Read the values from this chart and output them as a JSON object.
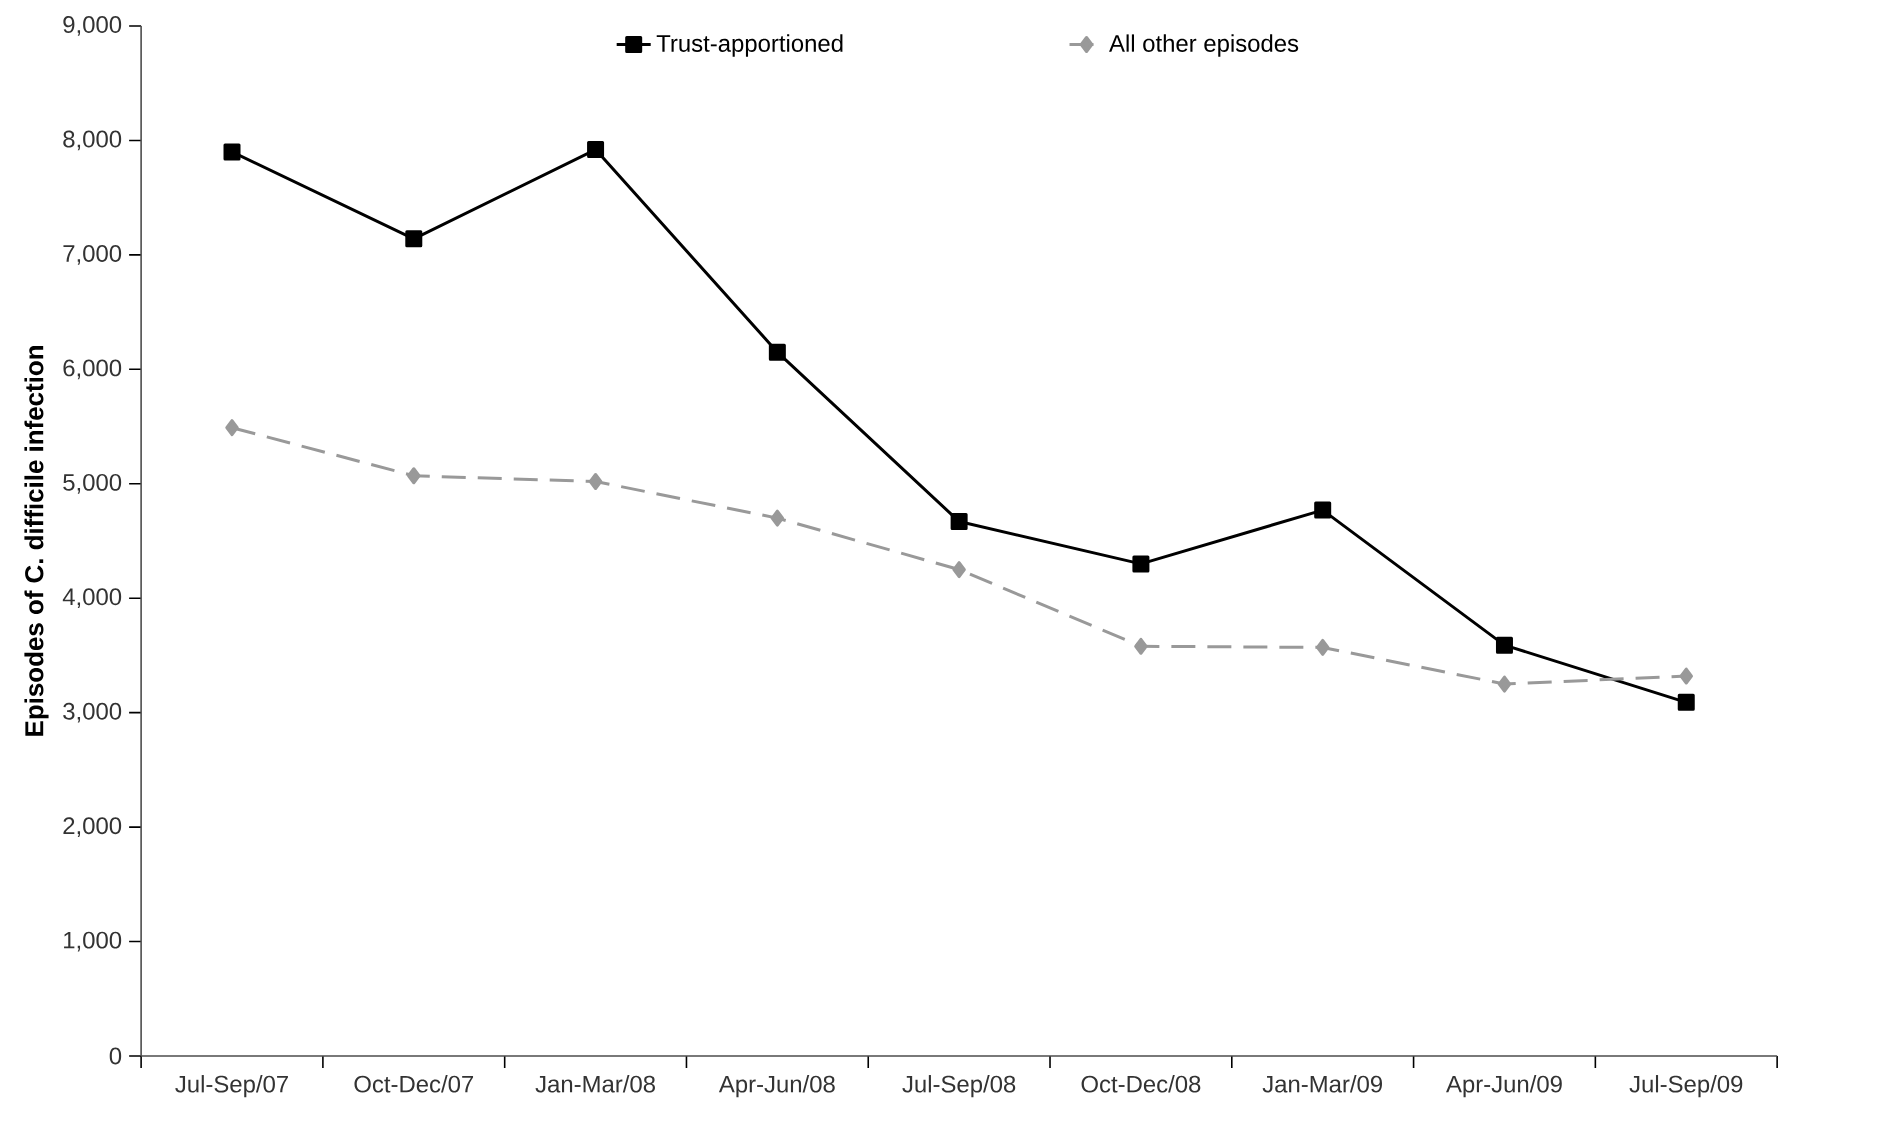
{
  "chart_data": {
    "type": "line",
    "ylabel": "Episodes of C. difficile infection",
    "categories": [
      "Jul-Sep/07",
      "Oct-Dec/07",
      "Jan-Mar/08",
      "Apr-Jun/08",
      "Jul-Sep/08",
      "Oct-Dec/08",
      "Jan-Mar/09",
      "Apr-Jun/09",
      "Jul-Sep/09"
    ],
    "series": [
      {
        "name": "Trust-apportioned",
        "color": "#000000",
        "marker": "square",
        "line_style": "solid",
        "values": [
          7900,
          7140,
          7920,
          6150,
          4670,
          4300,
          4770,
          3590,
          3090
        ]
      },
      {
        "name": "All other episodes",
        "color": "#999999",
        "marker": "diamond",
        "line_style": "dashed",
        "values": [
          5490,
          5070,
          5020,
          4700,
          4250,
          3580,
          3570,
          3250,
          3320
        ]
      }
    ],
    "ylim": [
      0,
      9000
    ],
    "yticks": [
      {
        "value": 0,
        "label": "0"
      },
      {
        "value": 1000,
        "label": "1,000"
      },
      {
        "value": 2000,
        "label": "2,000"
      },
      {
        "value": 3000,
        "label": "3,000"
      },
      {
        "value": 4000,
        "label": "4,000"
      },
      {
        "value": 5000,
        "label": "5,000"
      },
      {
        "value": 6000,
        "label": "6,000"
      },
      {
        "value": 7000,
        "label": "7,000"
      },
      {
        "value": 8000,
        "label": "8,000"
      },
      {
        "value": 9000,
        "label": "9,000"
      }
    ],
    "grid": false,
    "legend": "top"
  }
}
